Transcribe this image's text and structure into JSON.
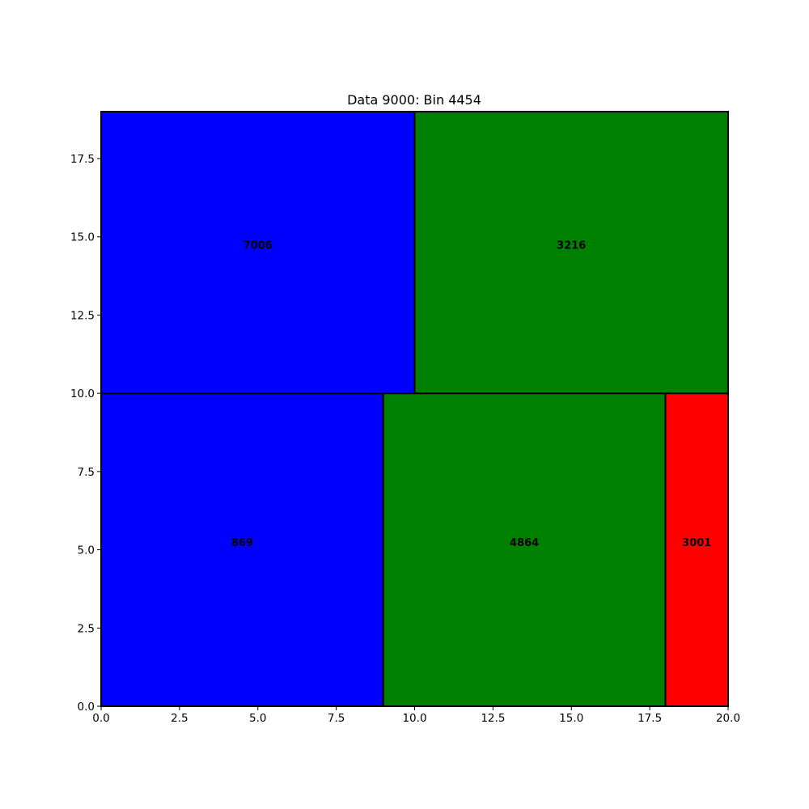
{
  "chart_data": {
    "type": "bar",
    "title": "Data 9000: Bin 4454",
    "xlabel": "",
    "ylabel": "",
    "xlim": [
      0,
      20
    ],
    "ylim": [
      0,
      19
    ],
    "grid": false,
    "x_ticks": [
      "0.0",
      "2.5",
      "5.0",
      "7.5",
      "10.0",
      "12.5",
      "15.0",
      "17.5",
      "20.0"
    ],
    "y_ticks": [
      "0.0",
      "2.5",
      "5.0",
      "7.5",
      "10.0",
      "12.5",
      "15.0",
      "17.5"
    ],
    "rectangles": [
      {
        "label": "869",
        "x": 0,
        "y": 0,
        "width": 9,
        "height": 10,
        "color": "#0000ff"
      },
      {
        "label": "4864",
        "x": 9,
        "y": 0,
        "width": 9,
        "height": 10,
        "color": "#008000"
      },
      {
        "label": "3001",
        "x": 18,
        "y": 0,
        "width": 2,
        "height": 10,
        "color": "#ff0000"
      },
      {
        "label": "7006",
        "x": 0,
        "y": 10,
        "width": 10,
        "height": 9,
        "color": "#0000ff"
      },
      {
        "label": "3216",
        "x": 10,
        "y": 10,
        "width": 10,
        "height": 9,
        "color": "#008000"
      }
    ]
  }
}
